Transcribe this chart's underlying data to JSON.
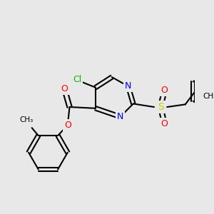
{
  "background_color": "#e8e8e8",
  "atom_colors": {
    "N": "#0000ff",
    "O": "#ff0000",
    "Cl": "#00bb00",
    "S": "#cccc00",
    "C": "#000000"
  },
  "bond_color": "#000000",
  "bond_width": 1.5,
  "figsize": [
    3.0,
    3.0
  ],
  "dpi": 100
}
